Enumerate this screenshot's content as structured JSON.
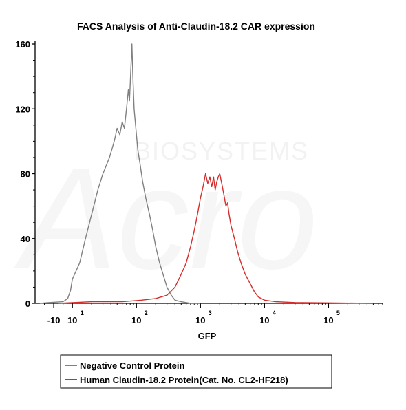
{
  "chart_data": {
    "type": "line",
    "title": "FACS Analysis of Anti-Claudin-18.2 CAR expression",
    "xlabel": "GFP",
    "ylabel": "",
    "x_scale": "biexponential",
    "xlim": [
      -30,
      700000
    ],
    "ylim": [
      0,
      160
    ],
    "y_ticks": [
      "0",
      "40",
      "80",
      "120",
      "160"
    ],
    "x_ticks": [
      {
        "value": -10,
        "label": "-10"
      },
      {
        "value": 10,
        "label": "10",
        "exp": "1"
      },
      {
        "value": 100,
        "label": "10",
        "exp": "2"
      },
      {
        "value": 1000,
        "label": "10",
        "exp": "3"
      },
      {
        "value": 10000,
        "label": "10",
        "exp": "4"
      },
      {
        "value": 100000,
        "label": "10",
        "exp": "5"
      }
    ],
    "watermark": "Acro BIOSYSTEMS",
    "legend_position": "bottom",
    "series": [
      {
        "name": "Negative Control Protein",
        "color": "#808080",
        "points": [
          [
            -25,
            0
          ],
          [
            -15,
            0.5
          ],
          [
            0,
            1
          ],
          [
            5,
            3
          ],
          [
            8,
            8
          ],
          [
            10,
            15
          ],
          [
            13,
            25
          ],
          [
            16,
            40
          ],
          [
            20,
            55
          ],
          [
            25,
            70
          ],
          [
            30,
            80
          ],
          [
            38,
            90
          ],
          [
            45,
            100
          ],
          [
            50,
            108
          ],
          [
            55,
            104
          ],
          [
            60,
            112
          ],
          [
            65,
            108
          ],
          [
            70,
            120
          ],
          [
            75,
            132
          ],
          [
            78,
            125
          ],
          [
            82,
            145
          ],
          [
            85,
            160
          ],
          [
            88,
            140
          ],
          [
            92,
            120
          ],
          [
            97,
            110
          ],
          [
            105,
            95
          ],
          [
            115,
            85
          ],
          [
            125,
            75
          ],
          [
            140,
            65
          ],
          [
            160,
            55
          ],
          [
            180,
            45
          ],
          [
            200,
            35
          ],
          [
            230,
            25
          ],
          [
            260,
            18
          ],
          [
            300,
            10
          ],
          [
            350,
            5
          ],
          [
            400,
            2
          ],
          [
            500,
            1
          ],
          [
            700,
            0
          ],
          [
            1000,
            0
          ]
        ]
      },
      {
        "name": "Human Claudin-18.2 Protein(Cat. No. CL2-HF218)",
        "color": "#d62b2b",
        "points": [
          [
            -5,
            0
          ],
          [
            20,
            1
          ],
          [
            60,
            1
          ],
          [
            120,
            2
          ],
          [
            200,
            3
          ],
          [
            300,
            5
          ],
          [
            400,
            10
          ],
          [
            500,
            18
          ],
          [
            600,
            25
          ],
          [
            700,
            35
          ],
          [
            800,
            45
          ],
          [
            900,
            55
          ],
          [
            1000,
            65
          ],
          [
            1100,
            72
          ],
          [
            1200,
            80
          ],
          [
            1300,
            74
          ],
          [
            1400,
            78
          ],
          [
            1500,
            72
          ],
          [
            1600,
            78
          ],
          [
            1700,
            70
          ],
          [
            1800,
            75
          ],
          [
            1900,
            78
          ],
          [
            2000,
            80
          ],
          [
            2150,
            74
          ],
          [
            2300,
            68
          ],
          [
            2500,
            60
          ],
          [
            2650,
            62
          ],
          [
            2800,
            55
          ],
          [
            3000,
            48
          ],
          [
            3400,
            40
          ],
          [
            3800,
            32
          ],
          [
            4300,
            25
          ],
          [
            5000,
            18
          ],
          [
            6000,
            12
          ],
          [
            7000,
            7
          ],
          [
            8000,
            4
          ],
          [
            10000,
            2
          ],
          [
            15000,
            1
          ],
          [
            30000,
            0.5
          ],
          [
            100000,
            0.3
          ],
          [
            500000,
            0
          ]
        ]
      }
    ]
  }
}
